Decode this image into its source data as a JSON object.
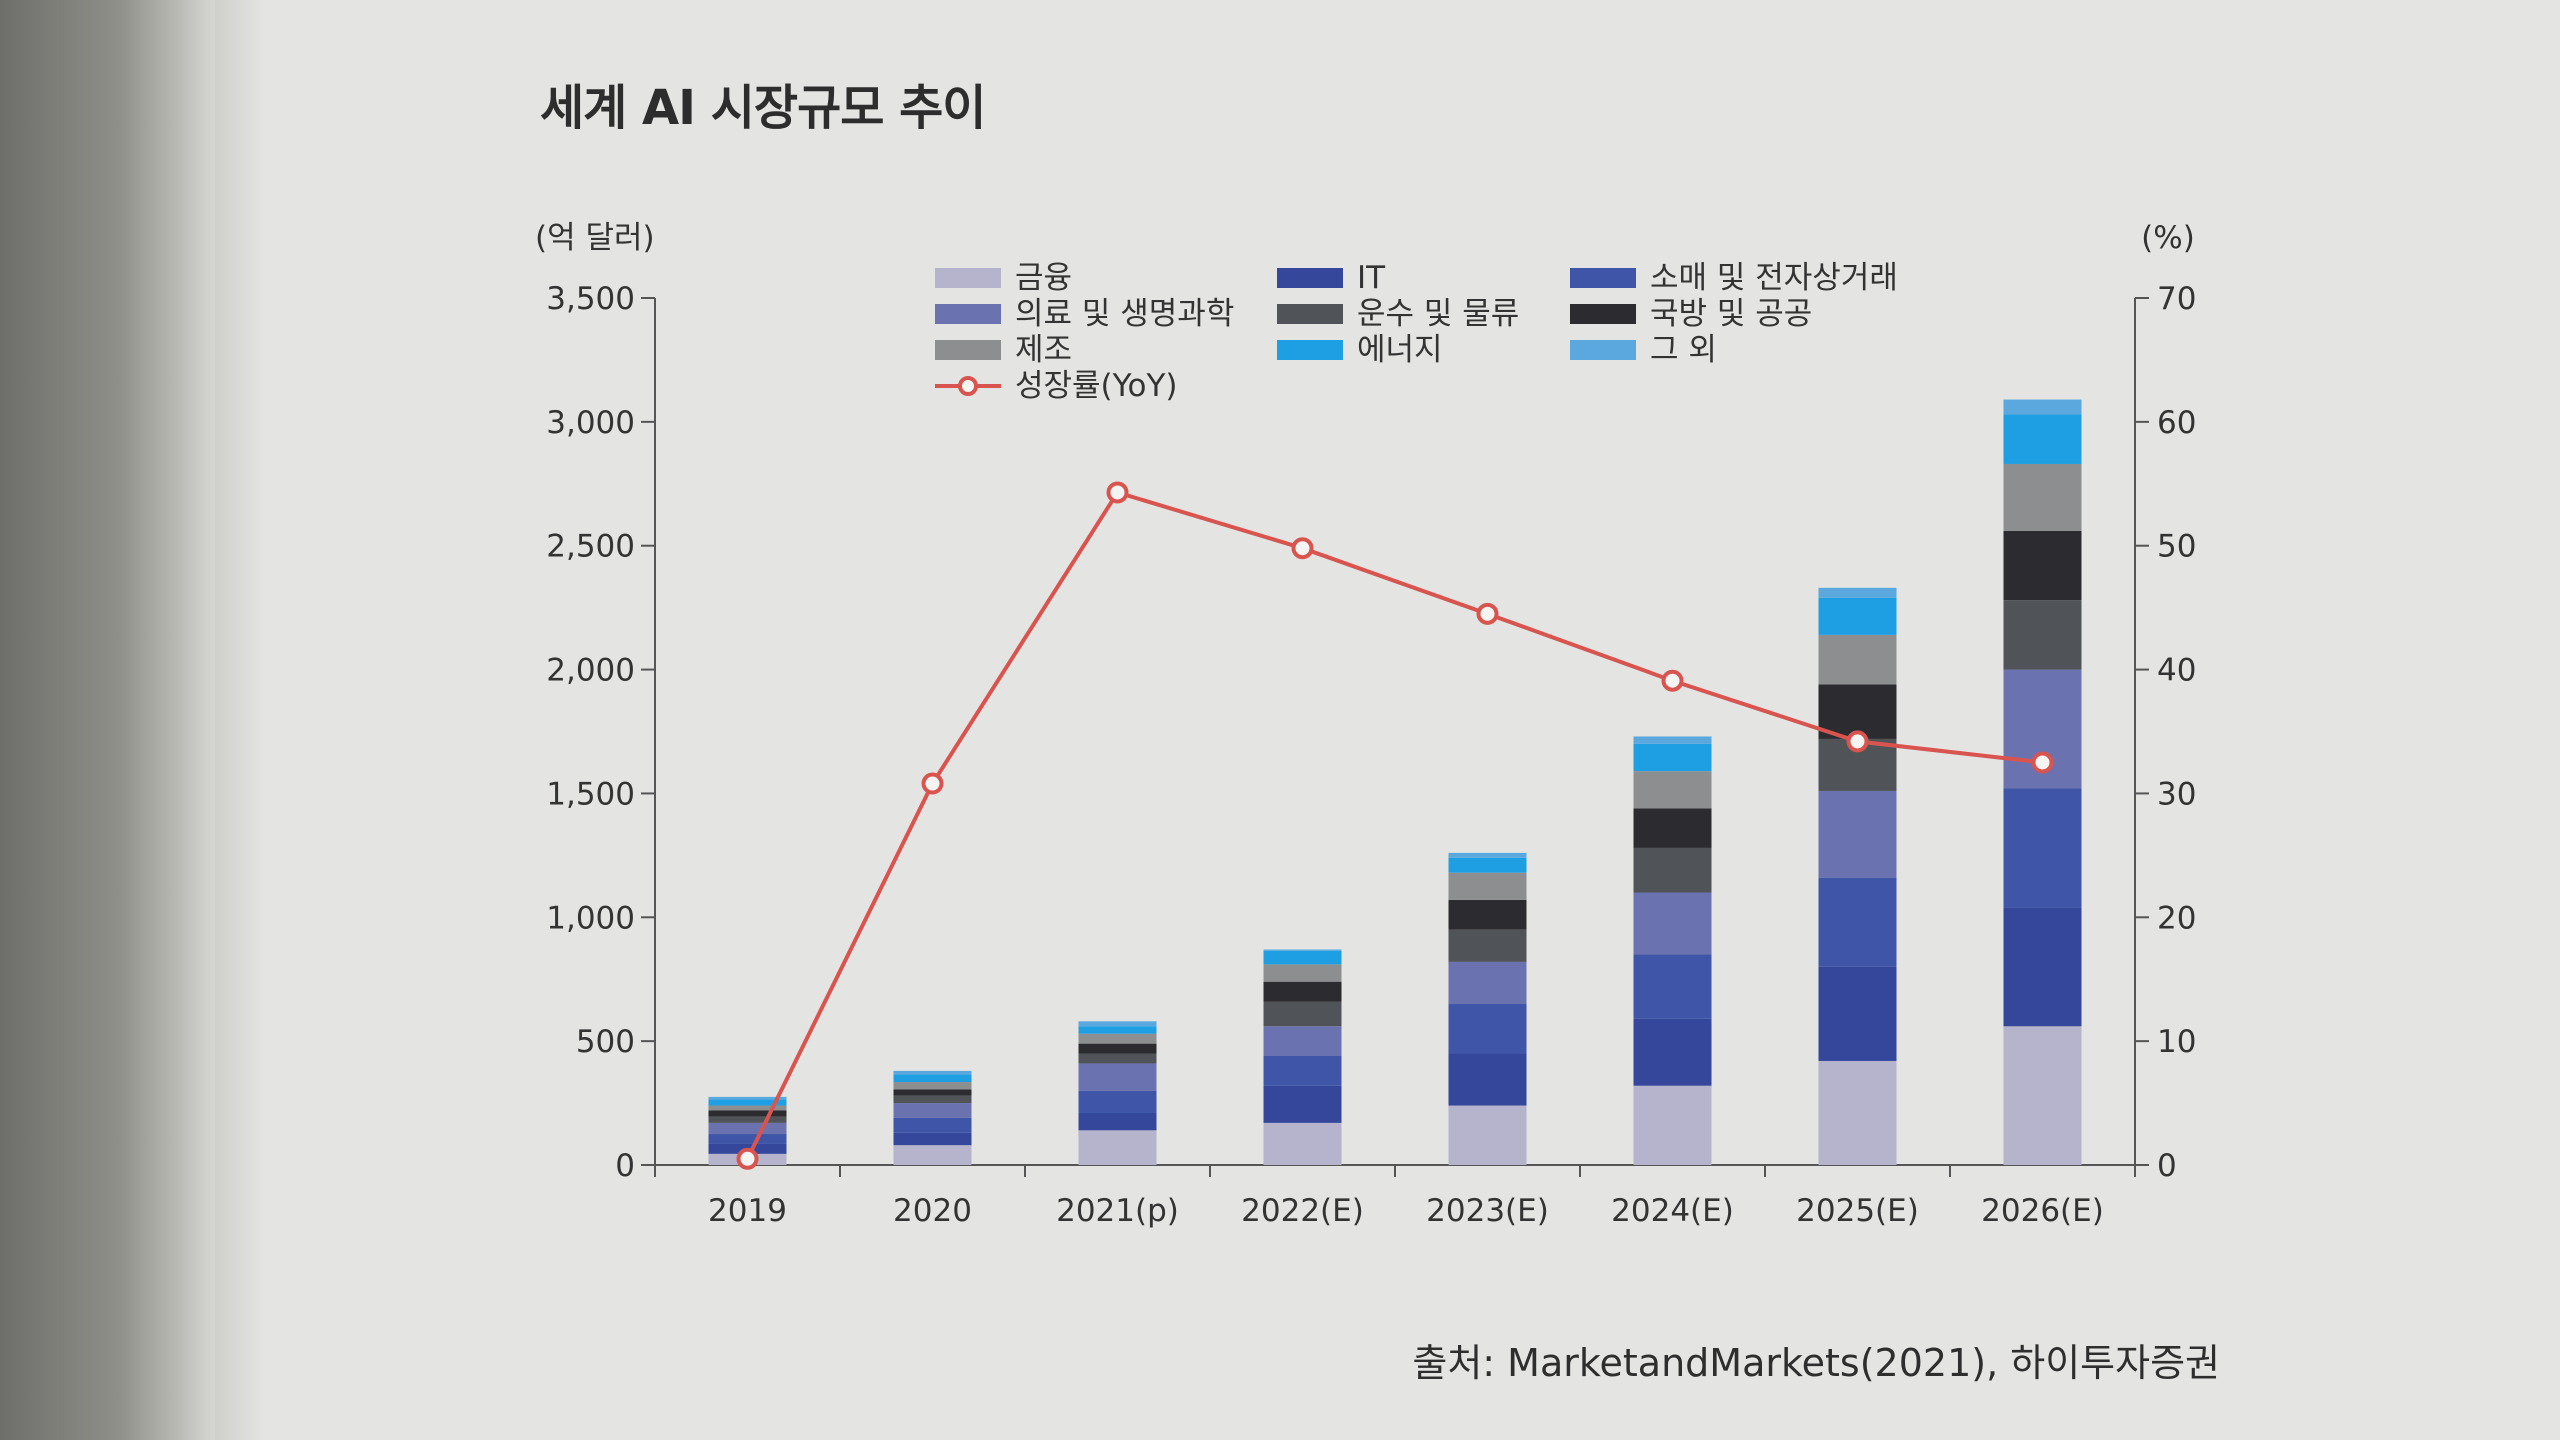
{
  "title": "세계 AI 시장규모 추이",
  "source": "출처: MarketandMarkets(2021), 하이투자증권",
  "chart_data": {
    "type": "bar",
    "stacked": true,
    "left_unit": "(억 달러)",
    "right_unit": "(%)",
    "categories": [
      "2019",
      "2020",
      "2021(p)",
      "2022(E)",
      "2023(E)",
      "2024(E)",
      "2025(E)",
      "2026(E)"
    ],
    "left_axis": {
      "min": 0,
      "max": 3500,
      "ticks": [
        0,
        500,
        1000,
        1500,
        2000,
        2500,
        3000,
        3500
      ],
      "tick_labels": [
        "0",
        "500",
        "1,000",
        "1,500",
        "2,000",
        "2,500",
        "3,000",
        "3,500"
      ]
    },
    "right_axis": {
      "min": 0,
      "max": 70,
      "ticks": [
        0,
        10,
        20,
        30,
        40,
        50,
        60,
        70
      ],
      "tick_labels": [
        "0",
        "10",
        "20",
        "30",
        "40",
        "50",
        "60",
        "70"
      ]
    },
    "series": [
      {
        "name": "금융",
        "color": "#b5b4cc",
        "values": [
          45,
          80,
          140,
          170,
          240,
          320,
          420,
          560
        ]
      },
      {
        "name": "IT",
        "color": "#34479a",
        "values": [
          40,
          50,
          70,
          150,
          210,
          270,
          380,
          480
        ]
      },
      {
        "name": "소매 및 전자상거래",
        "color": "#3e55a8",
        "values": [
          40,
          60,
          90,
          120,
          200,
          260,
          360,
          480
        ]
      },
      {
        "name": "의료 및 생명과학",
        "color": "#6b72b0",
        "values": [
          45,
          60,
          110,
          120,
          170,
          250,
          350,
          480
        ]
      },
      {
        "name": "운수 및 물류",
        "color": "#505458",
        "values": [
          25,
          30,
          40,
          100,
          130,
          180,
          210,
          280
        ]
      },
      {
        "name": "국방 및 공공",
        "color": "#2c2c30",
        "values": [
          25,
          25,
          40,
          80,
          120,
          160,
          220,
          280
        ]
      },
      {
        "name": "제조",
        "color": "#8c8e90",
        "values": [
          20,
          30,
          40,
          70,
          110,
          150,
          200,
          270
        ]
      },
      {
        "name": "에너지",
        "color": "#1f9fe3",
        "values": [
          25,
          30,
          30,
          55,
          60,
          110,
          150,
          200
        ]
      },
      {
        "name": "그 외",
        "color": "#5aa8dd",
        "values": [
          10,
          15,
          20,
          5,
          20,
          30,
          40,
          60
        ]
      }
    ],
    "line": {
      "name": "성장률(YoY)",
      "color": "#d9544f",
      "axis": "right",
      "values": [
        0.5,
        30.8,
        54.3,
        49.8,
        44.5,
        39.1,
        34.2,
        32.5
      ]
    },
    "legend": {
      "position": "top"
    }
  }
}
